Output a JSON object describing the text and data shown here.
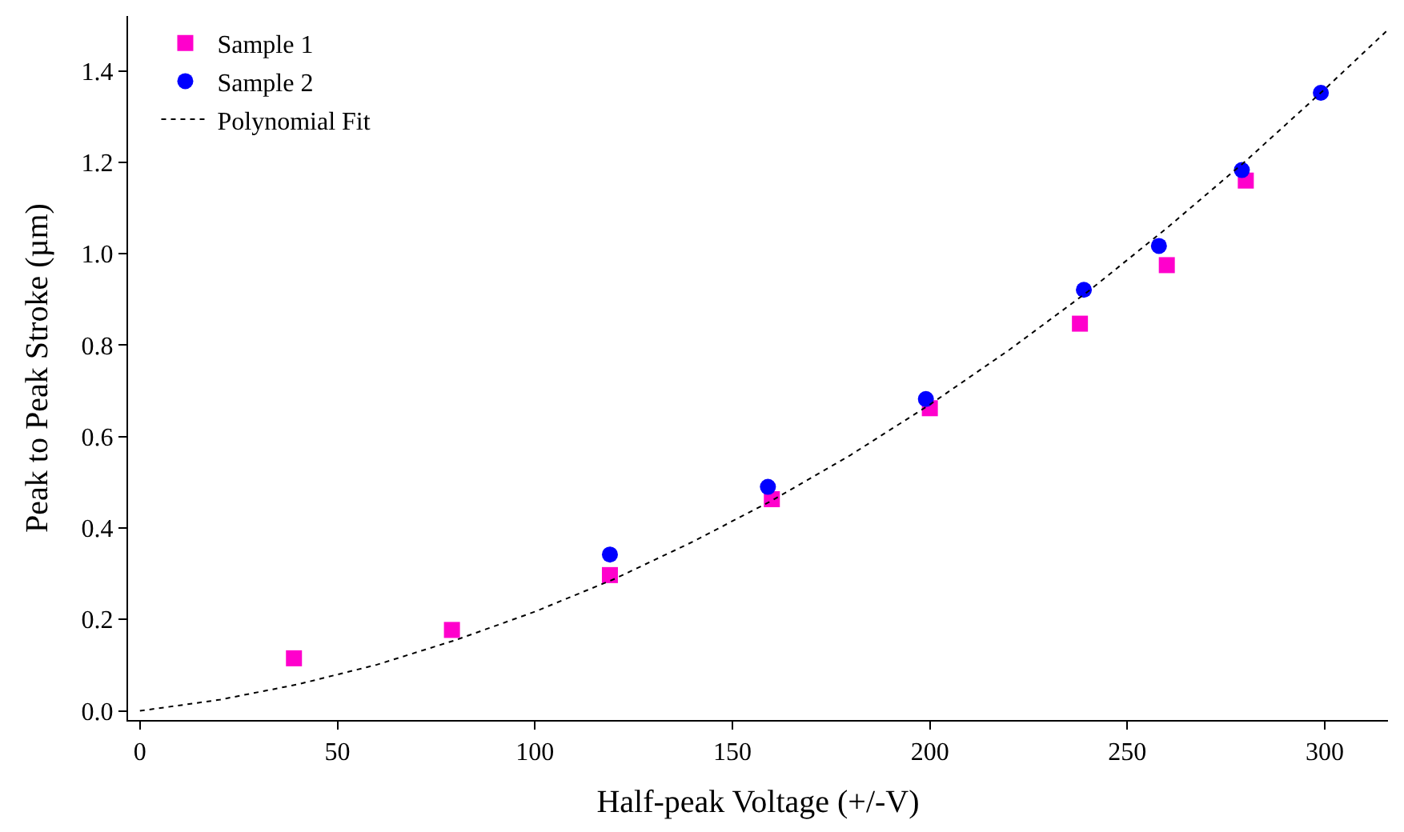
{
  "chart_data": {
    "type": "scatter",
    "xlabel": "Half-peak Voltage (+/-V)",
    "ylabel": "Peak to Peak Stroke (µm)",
    "xlim": [
      -3,
      316
    ],
    "ylim": [
      -0.02,
      1.52
    ],
    "xticks": [
      0,
      50,
      100,
      150,
      200,
      250,
      300
    ],
    "yticks": [
      {
        "value": 0,
        "label": "0.0"
      },
      {
        "value": 0.2,
        "label": "0.2"
      },
      {
        "value": 0.4,
        "label": "0.4"
      },
      {
        "value": 0.6,
        "label": "0.6"
      },
      {
        "value": 0.8,
        "label": "0.8"
      },
      {
        "value": 1.0,
        "label": "1.0"
      },
      {
        "value": 1.2,
        "label": "1.2"
      },
      {
        "value": 1.4,
        "label": "1.4"
      }
    ],
    "legend": "top left",
    "series": [
      {
        "name": "Sample 1",
        "color": "#ff00cc",
        "marker": "square",
        "x": [
          39,
          79,
          119,
          160,
          200,
          238,
          260,
          280
        ],
        "values": [
          0.115,
          0.177,
          0.297,
          0.463,
          0.662,
          0.847,
          0.975,
          1.16
        ]
      },
      {
        "name": "Sample 2",
        "color": "#0000ff",
        "marker": "circle",
        "x": [
          119,
          159,
          199,
          239,
          258,
          279,
          299
        ],
        "values": [
          0.342,
          0.49,
          0.682,
          0.921,
          1.017,
          1.183,
          1.352
        ]
      },
      {
        "name": "Polynomial Fit",
        "type": "line",
        "color": "#000000",
        "line_style": "dotted",
        "marker": "none",
        "x": [
          0,
          20,
          40,
          60,
          80,
          100,
          120,
          140,
          160,
          180,
          200,
          220,
          240,
          260,
          280,
          300,
          316
        ],
        "values": [
          0,
          0.024,
          0.058,
          0.101,
          0.155,
          0.217,
          0.288,
          0.37,
          0.46,
          0.56,
          0.67,
          0.789,
          0.917,
          1.056,
          1.203,
          1.36,
          1.49
        ]
      }
    ]
  }
}
